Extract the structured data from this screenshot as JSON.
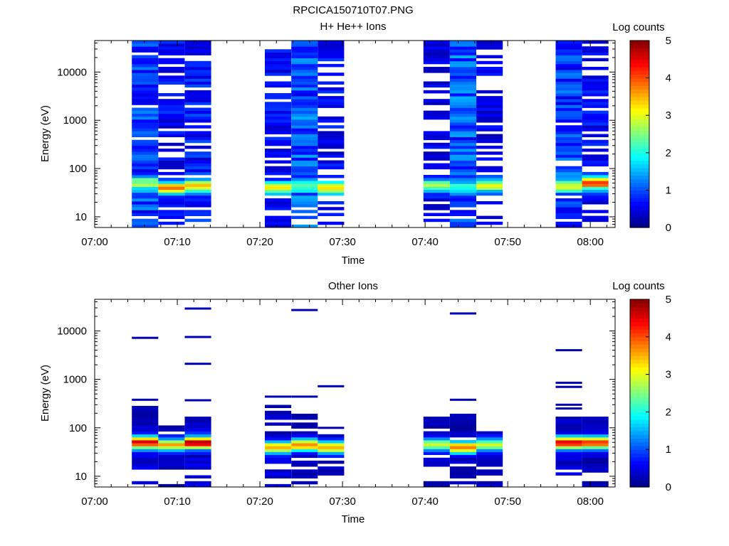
{
  "figure_title": "RPCICA150710T07.PNG",
  "chart_data": [
    {
      "type": "heatmap",
      "title": "H+ He++ Ions",
      "xlabel": "Time",
      "ylabel": "Energy (eV)",
      "xticks": [
        "07:00",
        "07:10",
        "07:20",
        "07:30",
        "07:40",
        "07:50",
        "08:00"
      ],
      "xrange_minutes": [
        0,
        63
      ],
      "yscale": "log",
      "ylim": [
        6,
        45000
      ],
      "yticks": [
        "10",
        "100",
        "1000",
        "10000"
      ],
      "colorbar": {
        "label": "Log counts",
        "range": [
          0,
          5
        ],
        "ticks": [
          "0",
          "1",
          "2",
          "3",
          "4",
          "5"
        ]
      },
      "columns": [
        {
          "start_min": 4.5,
          "end_min": 7.7,
          "peak": 2.8,
          "peak_energy": 50,
          "bg": 0.9,
          "fill": 0.95,
          "seed": 1
        },
        {
          "start_min": 7.7,
          "end_min": 10.9,
          "peak": 3.8,
          "peak_energy": 40,
          "bg": 0.6,
          "fill": 0.55,
          "seed": 2
        },
        {
          "start_min": 10.9,
          "end_min": 14.1,
          "peak": 3.4,
          "peak_energy": 45,
          "bg": 0.7,
          "fill": 0.85,
          "seed": 3
        },
        {
          "start_min": 20.6,
          "end_min": 23.8,
          "peak": 3.3,
          "peak_energy": 40,
          "bg": 0.6,
          "fill": 0.75,
          "seed": 4
        },
        {
          "start_min": 23.8,
          "end_min": 27.0,
          "peak": 2.0,
          "peak_energy": 45,
          "bg": 1.0,
          "fill": 0.98,
          "seed": 5
        },
        {
          "start_min": 27.0,
          "end_min": 30.2,
          "peak": 3.5,
          "peak_energy": 40,
          "bg": 0.6,
          "fill": 0.6,
          "seed": 6
        },
        {
          "start_min": 39.8,
          "end_min": 43.0,
          "peak": 2.8,
          "peak_energy": 45,
          "bg": 0.5,
          "fill": 0.6,
          "seed": 7
        },
        {
          "start_min": 43.0,
          "end_min": 46.2,
          "peak": 1.8,
          "peak_energy": 45,
          "bg": 1.0,
          "fill": 0.98,
          "seed": 8
        },
        {
          "start_min": 46.2,
          "end_min": 49.4,
          "peak": 3.0,
          "peak_energy": 45,
          "bg": 0.5,
          "fill": 0.55,
          "seed": 9
        },
        {
          "start_min": 55.8,
          "end_min": 59.0,
          "peak": 3.0,
          "peak_energy": 45,
          "bg": 0.9,
          "fill": 0.9,
          "seed": 10
        },
        {
          "start_min": 59.0,
          "end_min": 62.2,
          "peak": 4.0,
          "peak_energy": 50,
          "bg": 0.6,
          "fill": 0.7,
          "seed": 11
        }
      ]
    },
    {
      "type": "heatmap",
      "title": "Other Ions",
      "xlabel": "Time",
      "ylabel": "Energy (eV)",
      "xticks": [
        "07:00",
        "07:10",
        "07:20",
        "07:30",
        "07:40",
        "07:50",
        "08:00"
      ],
      "xrange_minutes": [
        0,
        63
      ],
      "yscale": "log",
      "ylim": [
        6,
        45000
      ],
      "yticks": [
        "10",
        "100",
        "1000",
        "10000"
      ],
      "colorbar": {
        "label": "Log counts",
        "range": [
          0,
          5
        ],
        "ticks": [
          "0",
          "1",
          "2",
          "3",
          "4",
          "5"
        ]
      },
      "columns": [
        {
          "start_min": 4.5,
          "end_min": 7.7,
          "peak": 4.5,
          "peak_energy": 50,
          "top_energy": 250,
          "bg": 0.4,
          "fill": 0.9,
          "seed": 21,
          "sparse": [
            7200,
            380,
            270
          ]
        },
        {
          "start_min": 7.7,
          "end_min": 10.9,
          "peak": 3.5,
          "peak_energy": 45,
          "top_energy": 120,
          "bg": 0.3,
          "fill": 0.9,
          "seed": 22,
          "sparse": []
        },
        {
          "start_min": 10.9,
          "end_min": 14.1,
          "peak": 4.8,
          "peak_energy": 50,
          "top_energy": 200,
          "bg": 0.4,
          "fill": 0.85,
          "seed": 23,
          "sparse": [
            29000,
            7500,
            2100,
            370
          ]
        },
        {
          "start_min": 20.6,
          "end_min": 23.8,
          "peak": 3.5,
          "peak_energy": 40,
          "top_energy": 300,
          "bg": 0.4,
          "fill": 0.85,
          "seed": 24,
          "sparse": [
            440
          ]
        },
        {
          "start_min": 23.8,
          "end_min": 27.0,
          "peak": 3.8,
          "peak_energy": 45,
          "top_energy": 200,
          "bg": 0.3,
          "fill": 0.8,
          "seed": 25,
          "sparse": [
            27000,
            440
          ]
        },
        {
          "start_min": 27.0,
          "end_min": 30.2,
          "peak": 3.5,
          "peak_energy": 40,
          "top_energy": 70,
          "bg": 0.3,
          "fill": 0.8,
          "seed": 26,
          "sparse": [
            720,
            100
          ]
        },
        {
          "start_min": 39.8,
          "end_min": 43.0,
          "peak": 2.9,
          "peak_energy": 45,
          "top_energy": 160,
          "bg": 0.3,
          "fill": 0.85,
          "seed": 27,
          "sparse": []
        },
        {
          "start_min": 43.0,
          "end_min": 46.2,
          "peak": 3.8,
          "peak_energy": 40,
          "top_energy": 200,
          "bg": 0.3,
          "fill": 0.8,
          "seed": 28,
          "sparse": [
            23000,
            380
          ]
        },
        {
          "start_min": 46.2,
          "end_min": 49.4,
          "peak": 3.0,
          "peak_energy": 45,
          "top_energy": 80,
          "bg": 0.3,
          "fill": 0.9,
          "seed": 29,
          "sparse": []
        },
        {
          "start_min": 55.8,
          "end_min": 59.0,
          "peak": 4.5,
          "peak_energy": 50,
          "top_energy": 170,
          "bg": 0.4,
          "fill": 0.85,
          "seed": 30,
          "sparse": [
            4000,
            850,
            700,
            300,
            250
          ]
        },
        {
          "start_min": 59.0,
          "end_min": 62.2,
          "peak": 4.3,
          "peak_energy": 50,
          "top_energy": 160,
          "bg": 0.3,
          "fill": 0.85,
          "seed": 31,
          "sparse": []
        }
      ]
    }
  ]
}
